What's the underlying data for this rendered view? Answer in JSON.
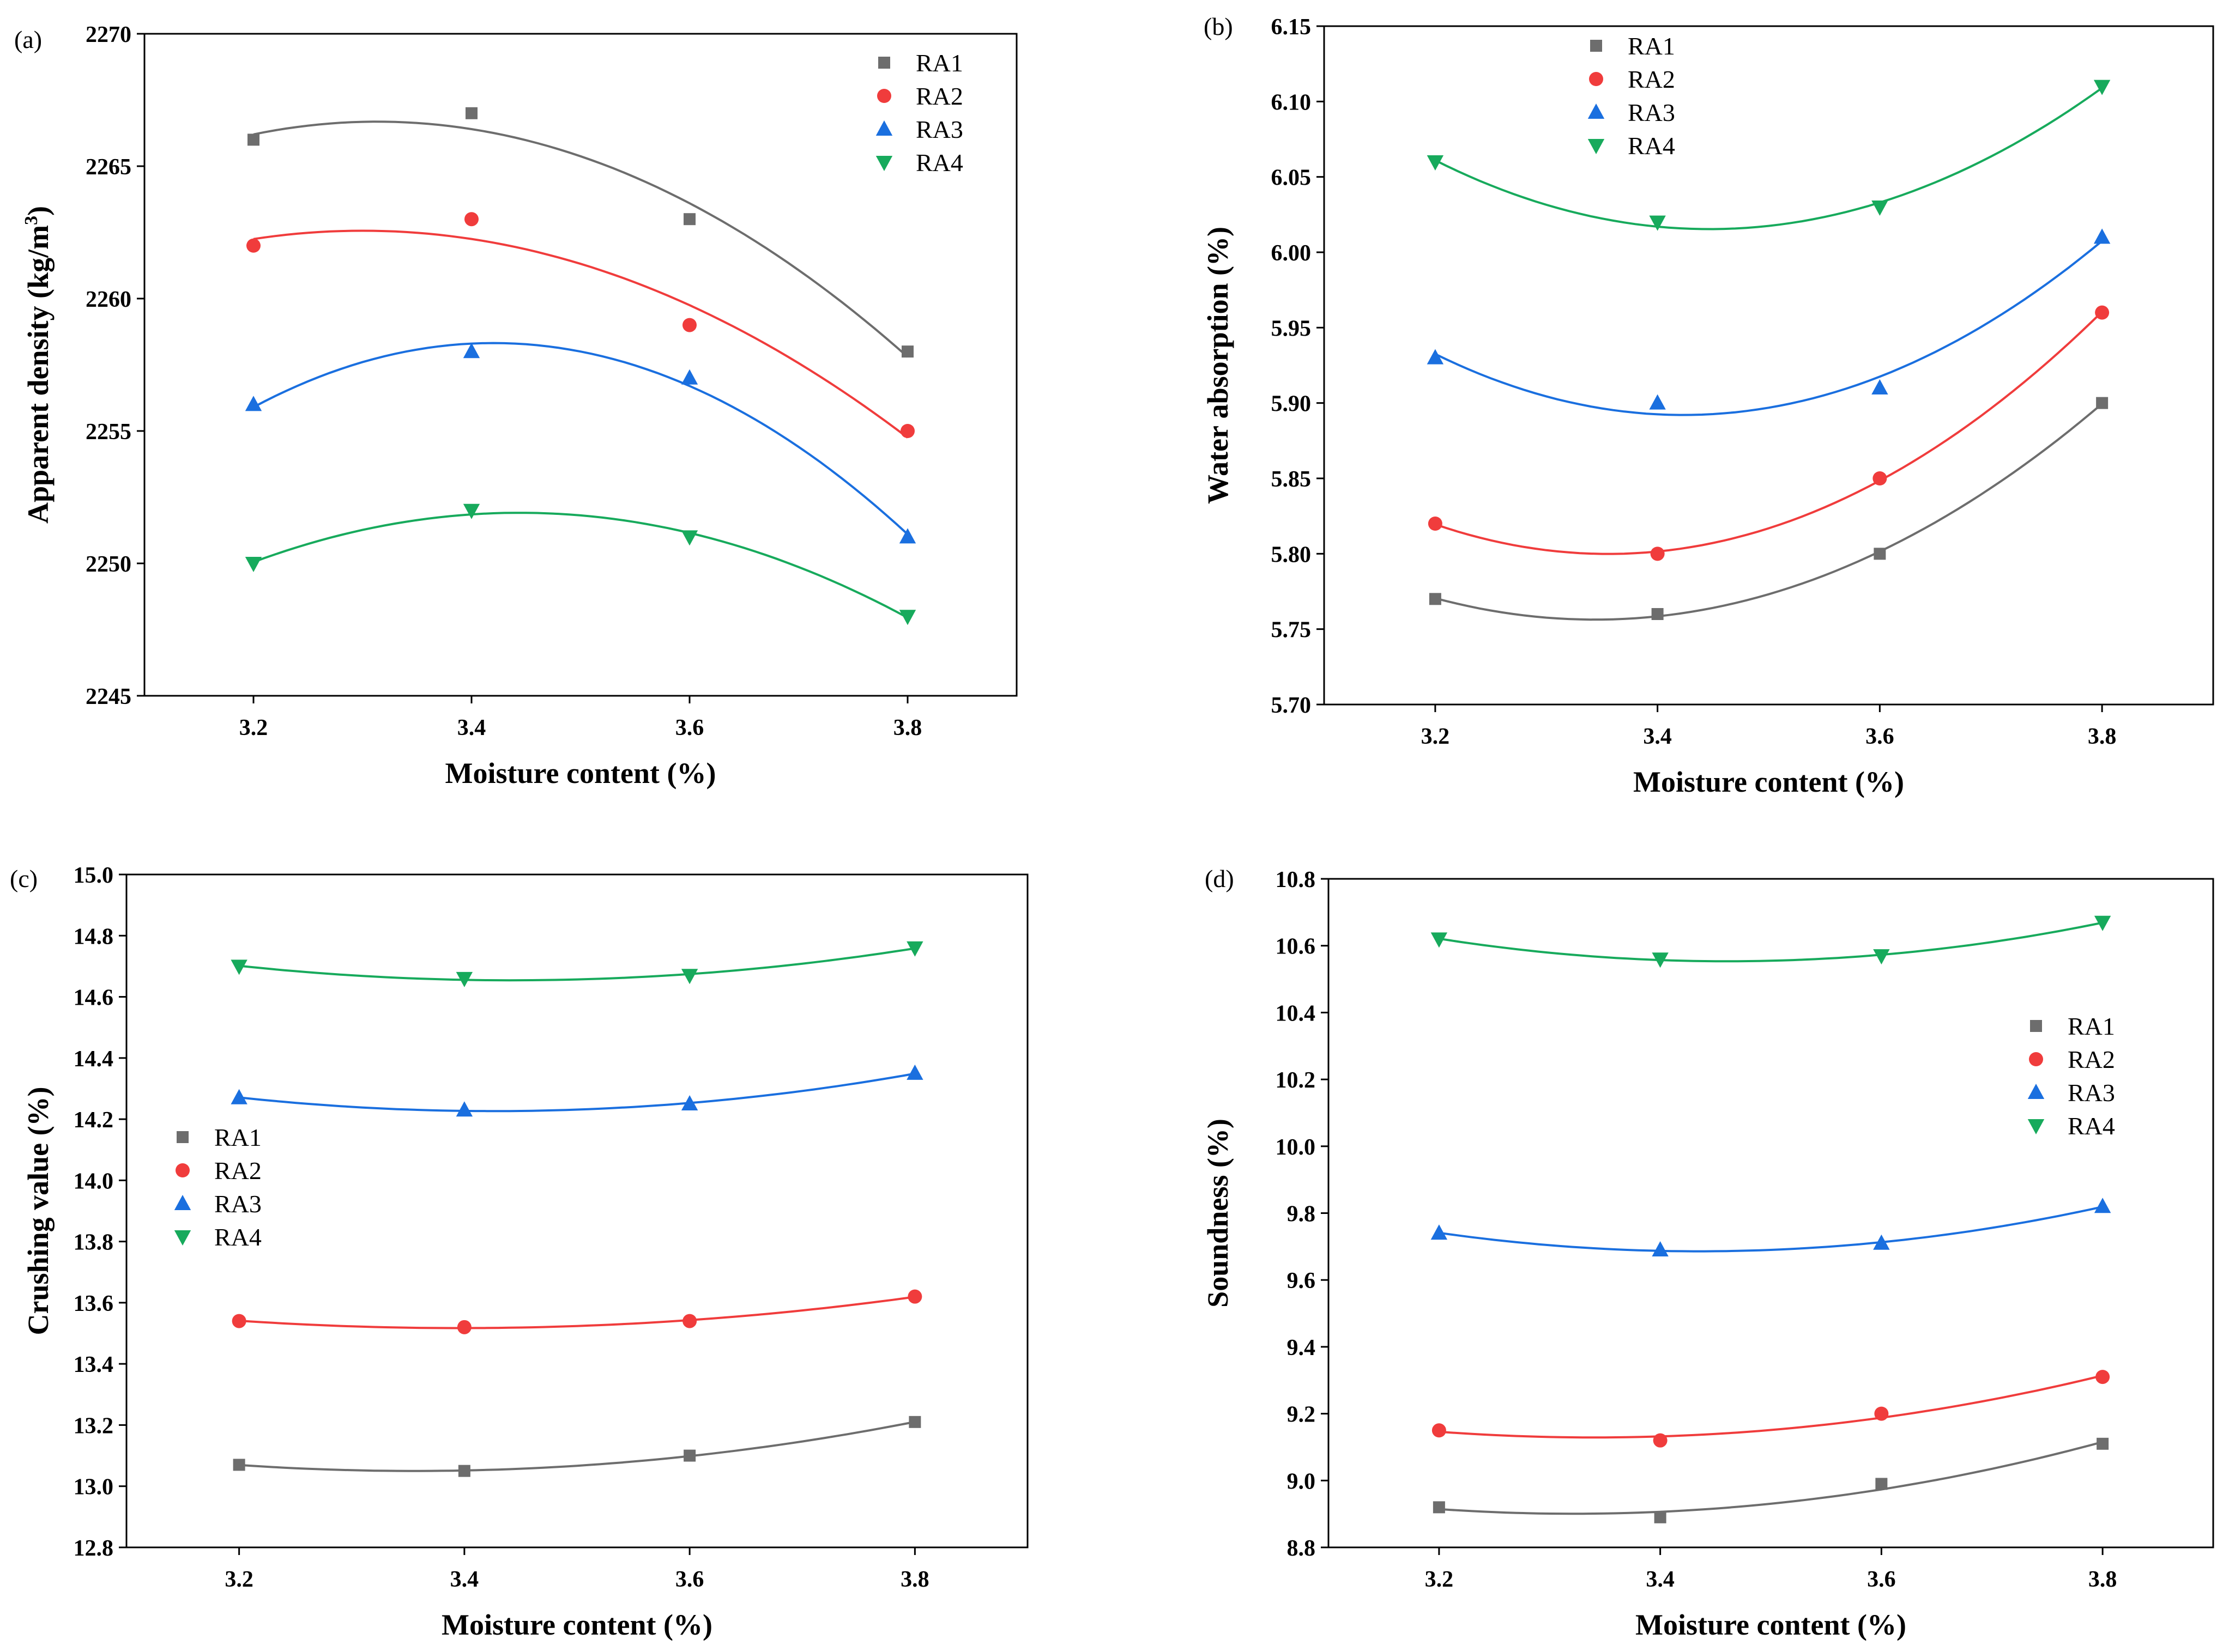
{
  "figure": {
    "title": ""
  },
  "colors": {
    "RA1": "#6d6d6d",
    "RA2": "#f03c3c",
    "RA3": "#1a6fdf",
    "RA4": "#17aa5c",
    "axis": "#000000",
    "background": "#ffffff"
  },
  "chart_data": [
    {
      "panel": "(a)",
      "type": "scatter",
      "fit": "quadratic",
      "title": "",
      "xlabel": "Moisture content (%)",
      "ylabel": "Apparent density (kg/m3)",
      "ylabel_base": "Apparent density (kg/m",
      "ylabel_sup": "3",
      "ylabel_tail": ")",
      "xlim": [
        3.1,
        3.9
      ],
      "ylim": [
        2245,
        2270
      ],
      "xticks": [
        3.2,
        3.4,
        3.6,
        3.8
      ],
      "xtick_labels": [
        "3.2",
        "3.4",
        "3.6",
        "3.8"
      ],
      "yticks": [
        2245,
        2250,
        2255,
        2260,
        2265,
        2270
      ],
      "ytick_labels": [
        "2245",
        "2250",
        "2255",
        "2260",
        "2265",
        "2270"
      ],
      "legend": "top-right",
      "x": [
        3.2,
        3.4,
        3.6,
        3.8
      ],
      "series": [
        {
          "name": "RA1",
          "marker": "square",
          "values": [
            2266,
            2267,
            2263,
            2258
          ]
        },
        {
          "name": "RA2",
          "marker": "circle",
          "values": [
            2262,
            2263,
            2259,
            2255
          ]
        },
        {
          "name": "RA3",
          "marker": "triangle-up",
          "values": [
            2256,
            2258,
            2257,
            2251
          ]
        },
        {
          "name": "RA4",
          "marker": "triangle-down",
          "values": [
            2250,
            2252,
            2251,
            2248
          ]
        }
      ]
    },
    {
      "panel": "(b)",
      "type": "scatter",
      "fit": "quadratic",
      "title": "",
      "xlabel": "Moisture content (%)",
      "ylabel": "Water absorption (%)",
      "xlim": [
        3.1,
        3.9
      ],
      "ylim": [
        5.7,
        6.15
      ],
      "xticks": [
        3.2,
        3.4,
        3.6,
        3.8
      ],
      "xtick_labels": [
        "3.2",
        "3.4",
        "3.6",
        "3.8"
      ],
      "yticks": [
        5.7,
        5.75,
        5.8,
        5.85,
        5.9,
        5.95,
        6.0,
        6.05,
        6.1,
        6.15
      ],
      "ytick_labels": [
        "5.70",
        "5.75",
        "5.80",
        "5.85",
        "5.90",
        "5.95",
        "6.00",
        "6.05",
        "6.10",
        "6.15"
      ],
      "legend": "top-left",
      "x": [
        3.2,
        3.4,
        3.6,
        3.8
      ],
      "series": [
        {
          "name": "RA1",
          "marker": "square",
          "values": [
            5.77,
            5.76,
            5.8,
            5.9
          ]
        },
        {
          "name": "RA2",
          "marker": "circle",
          "values": [
            5.82,
            5.8,
            5.85,
            5.96
          ]
        },
        {
          "name": "RA3",
          "marker": "triangle-up",
          "values": [
            5.93,
            5.9,
            5.91,
            6.01
          ]
        },
        {
          "name": "RA4",
          "marker": "triangle-down",
          "values": [
            6.06,
            6.02,
            6.03,
            6.11
          ]
        }
      ]
    },
    {
      "panel": "(c)",
      "type": "scatter",
      "fit": "quadratic",
      "title": "",
      "xlabel": "Moisture content (%)",
      "ylabel": "Crushing value (%)",
      "xlim": [
        3.1,
        3.9
      ],
      "ylim": [
        12.8,
        15.0
      ],
      "xticks": [
        3.2,
        3.4,
        3.6,
        3.8
      ],
      "xtick_labels": [
        "3.2",
        "3.4",
        "3.6",
        "3.8"
      ],
      "yticks": [
        12.8,
        13.0,
        13.2,
        13.4,
        13.6,
        13.8,
        14.0,
        14.2,
        14.4,
        14.6,
        14.8,
        15.0
      ],
      "ytick_labels": [
        "12.8",
        "13.0",
        "13.2",
        "13.4",
        "13.6",
        "13.8",
        "14.0",
        "14.2",
        "14.4",
        "14.6",
        "14.8",
        "15.0"
      ],
      "legend": "middle-left",
      "x": [
        3.2,
        3.4,
        3.6,
        3.8
      ],
      "series": [
        {
          "name": "RA1",
          "marker": "square",
          "values": [
            13.07,
            13.05,
            13.1,
            13.21
          ]
        },
        {
          "name": "RA2",
          "marker": "circle",
          "values": [
            13.54,
            13.52,
            13.54,
            13.62
          ]
        },
        {
          "name": "RA3",
          "marker": "triangle-up",
          "values": [
            14.27,
            14.23,
            14.25,
            14.35
          ]
        },
        {
          "name": "RA4",
          "marker": "triangle-down",
          "values": [
            14.7,
            14.66,
            14.67,
            14.76
          ]
        }
      ]
    },
    {
      "panel": "(d)",
      "type": "scatter",
      "fit": "quadratic",
      "title": "",
      "xlabel": "Moisture content (%)",
      "ylabel": "Soundness (%)",
      "xlim": [
        3.1,
        3.9
      ],
      "ylim": [
        8.8,
        10.8
      ],
      "xticks": [
        3.2,
        3.4,
        3.6,
        3.8
      ],
      "xtick_labels": [
        "3.2",
        "3.4",
        "3.6",
        "3.8"
      ],
      "yticks": [
        8.8,
        9.0,
        9.2,
        9.4,
        9.6,
        9.8,
        10.0,
        10.2,
        10.4,
        10.6,
        10.8
      ],
      "ytick_labels": [
        "8.8",
        "9.0",
        "9.2",
        "9.4",
        "9.6",
        "9.8",
        "10.0",
        "10.2",
        "10.4",
        "10.6",
        "10.8"
      ],
      "legend": "middle-right",
      "x": [
        3.2,
        3.4,
        3.6,
        3.8
      ],
      "series": [
        {
          "name": "RA1",
          "marker": "square",
          "values": [
            8.92,
            8.89,
            8.99,
            9.11
          ]
        },
        {
          "name": "RA2",
          "marker": "circle",
          "values": [
            9.15,
            9.12,
            9.2,
            9.31
          ]
        },
        {
          "name": "RA3",
          "marker": "triangle-up",
          "values": [
            9.74,
            9.69,
            9.71,
            9.82
          ]
        },
        {
          "name": "RA4",
          "marker": "triangle-down",
          "values": [
            10.62,
            10.56,
            10.57,
            10.67
          ]
        }
      ]
    }
  ]
}
